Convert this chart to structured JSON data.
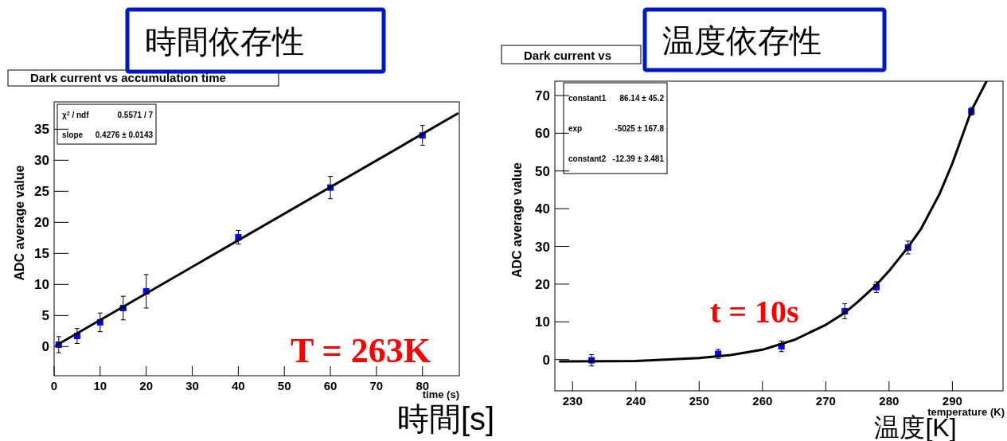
{
  "chart_data": [
    {
      "type": "scatter",
      "title": "Dark current vs accumulation time",
      "subtitle": "時間依存性",
      "xlabel": "time (s)",
      "ylabel": "ADC average value",
      "xlim": [
        0,
        88
      ],
      "ylim": [
        -4.7,
        39.4
      ],
      "xticks": [
        0,
        10,
        20,
        30,
        40,
        50,
        60,
        70,
        80
      ],
      "yticks": [
        0,
        5,
        10,
        15,
        20,
        25,
        30,
        35
      ],
      "series": [
        {
          "type": "scatter",
          "marker": "square",
          "color": "#0000ff",
          "x": [
            1,
            5,
            10,
            15,
            20,
            40,
            60,
            80
          ],
          "values": [
            0.3,
            1.7,
            3.9,
            6.2,
            8.9,
            17.6,
            25.6,
            34.0
          ],
          "errors": [
            1.3,
            1.2,
            1.5,
            1.9,
            2.7,
            1.1,
            1.8,
            1.6
          ]
        },
        {
          "type": "line",
          "marker": "none",
          "color": "#000000",
          "x": [
            0.5,
            87.6
          ],
          "values": [
            0.2,
            37.5
          ]
        }
      ],
      "annotations": [
        "χ$^{2}$ / ndf",
        "0.5571 / 7",
        "slope",
        "0.4276 ± 0.0143",
        "T = 263K",
        "時間[s]"
      ]
    },
    {
      "type": "scatter",
      "title": "Dark current vs",
      "subtitle": "温度依存性",
      "xlabel": "temperature (K)",
      "ylabel": "ADC average value",
      "xlim": [
        227.2,
        298
      ],
      "ylim": [
        -8.3,
        73.8
      ],
      "xticks": [
        230,
        240,
        250,
        260,
        270,
        280,
        290
      ],
      "yticks": [
        0,
        10,
        20,
        30,
        40,
        50,
        60,
        70
      ],
      "series": [
        {
          "type": "scatter",
          "marker": "square",
          "color": "#0000ff",
          "x": [
            233,
            253,
            263,
            273,
            278,
            283,
            293
          ],
          "values": [
            -0.2,
            1.5,
            3.5,
            12.8,
            19.2,
            29.7,
            65.8
          ],
          "errors": [
            1.5,
            1.2,
            1.4,
            2.0,
            1.4,
            1.7,
            1.0
          ]
        },
        {
          "type": "line",
          "marker": "none",
          "color": "#000000",
          "x": [
            228,
            240,
            250,
            255,
            260,
            265,
            270,
            273,
            275,
            278,
            280,
            283,
            285,
            288,
            290,
            293,
            295.4
          ],
          "values": [
            -0.5,
            -0.4,
            0.4,
            1.2,
            2.6,
            5.2,
            9.2,
            12.4,
            15.2,
            19.8,
            23.5,
            29.8,
            34.5,
            44,
            52,
            66,
            73.8
          ]
        }
      ],
      "annotations": [
        "constant1",
        "86.14 ±  45.2",
        "exp",
        "-5025 ± 167.8",
        "constant2",
        "-12.39 ± 3.481",
        "t = 10s",
        "温度[K]"
      ]
    }
  ]
}
